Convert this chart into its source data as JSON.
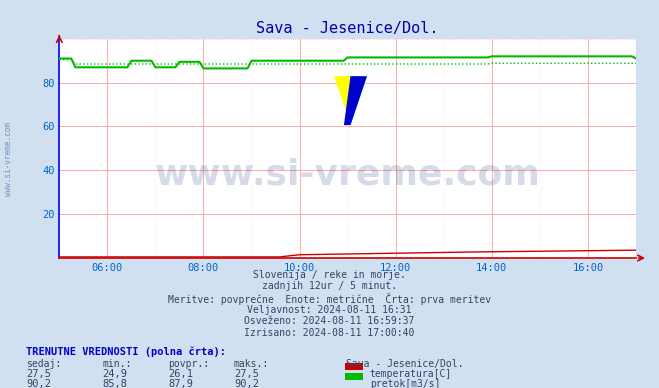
{
  "title": "Sava - Jesenice/Dol.",
  "title_color": "#0000aa",
  "bg_color": "#d0e0f0",
  "plot_bg_color": "#ffffff",
  "grid_color": "#ffaaaa",
  "grid_minor_color": "#ffe0e0",
  "axis_color": "#0000ff",
  "xlabel_color": "#0066cc",
  "ylabel_color": "#0066cc",
  "watermark_text": "www.si-vreme.com",
  "watermark_color": "#1a3a8a",
  "watermark_alpha": 0.18,
  "xmin": 0,
  "xmax": 144,
  "ymin": 0,
  "ymax": 100,
  "yticks": [
    20,
    40,
    60,
    80
  ],
  "xtick_labels": [
    "06:00",
    "08:00",
    "10:00",
    "12:00",
    "14:00",
    "16:00"
  ],
  "xtick_positions": [
    12,
    36,
    60,
    84,
    108,
    132
  ],
  "temp_color": "#cc0000",
  "flow_color": "#00bb00",
  "text_info": [
    "Slovenija / reke in morje.",
    "zadnjih 12ur / 5 minut.",
    "Meritve: povprečne  Enote: metrične  Črta: prva meritev",
    "Veljavnost: 2024-08-11 16:31",
    "Osveženo: 2024-08-11 16:59:37",
    "Izrisano: 2024-08-11 17:00:40"
  ],
  "table_title": "TRENUTNE VREDNOSTI (polna črta):",
  "table_headers": [
    "sedaj:",
    "min.:",
    "povpr.:",
    "maks.:"
  ],
  "temp_row": [
    "27,5",
    "24,9",
    "26,1",
    "27,5"
  ],
  "flow_row": [
    "90,2",
    "85,8",
    "87,9",
    "90,2"
  ],
  "legend_station": "Sava - Jesenice/Dol.",
  "legend_temp": "temperatura[C]",
  "legend_flow": "pretok[m3/s]",
  "n_points": 145,
  "side_label": "www.si-vreme.com"
}
